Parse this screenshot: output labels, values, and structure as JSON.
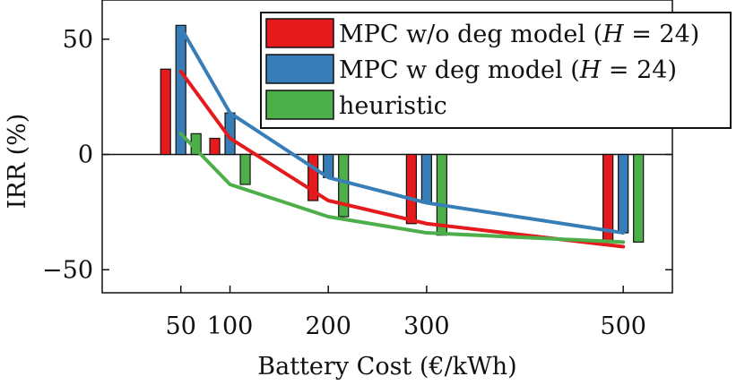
{
  "chart_data": {
    "type": "bar",
    "title": "",
    "xlabel": "Battery Cost (€/kWh)",
    "ylabel": "IRR (%)",
    "x": [
      50,
      100,
      200,
      300,
      500
    ],
    "xticks": [
      "50",
      "100",
      "200",
      "300",
      "500"
    ],
    "xlim": [
      -30,
      550
    ],
    "yticks": [
      50,
      0,
      -50
    ],
    "yticklabels": [
      "50",
      "0",
      "−50"
    ],
    "ylim": [
      -60,
      67
    ],
    "grid": false,
    "legend_position": "top-right",
    "series": [
      {
        "name": "MPC w/o deg model (H = 24)",
        "legend_label": "MPC w/o deg model (𝐻 = 24)",
        "color": "#e41a1c",
        "bars": [
          37,
          7,
          -20,
          -30,
          -38
        ],
        "curve": [
          36,
          7,
          -20,
          -30,
          -40
        ]
      },
      {
        "name": "MPC w deg model (H = 24)",
        "legend_label": "MPC w deg model (𝐻 = 24)",
        "color": "#377eb8",
        "bars": [
          56,
          18,
          -10,
          -21,
          -34
        ],
        "curve": [
          55,
          18,
          -10,
          -21,
          -34
        ]
      },
      {
        "name": "heuristic",
        "legend_label": "heuristic",
        "color": "#4daf4a",
        "bars": [
          9,
          -13,
          -27,
          -35,
          -38
        ],
        "curve": [
          9,
          -13,
          -27,
          -34,
          -38
        ]
      }
    ]
  }
}
